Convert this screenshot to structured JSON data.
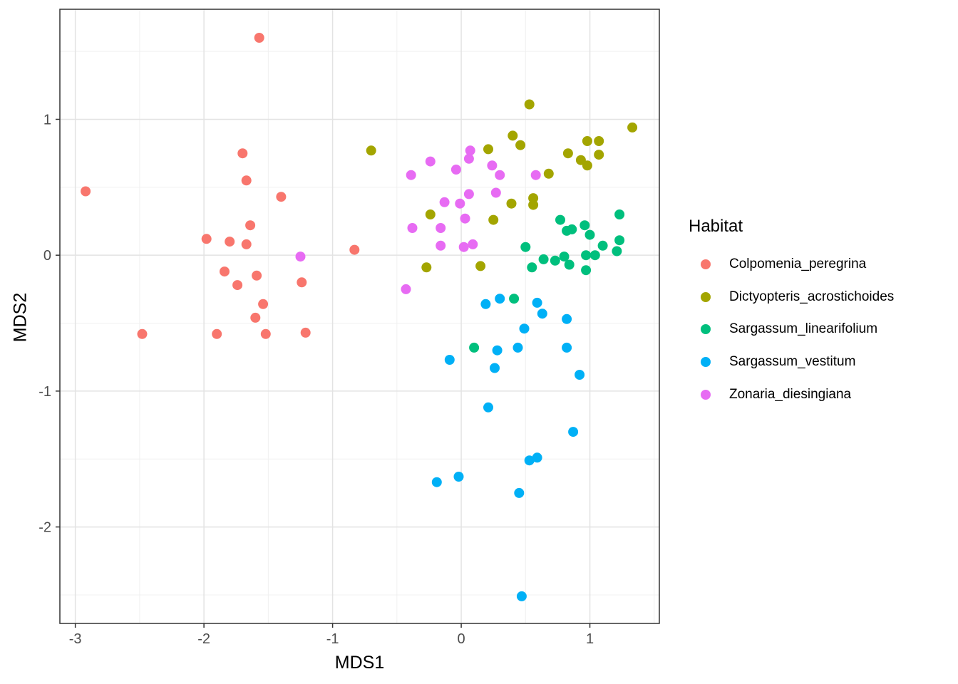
{
  "legend": {
    "title": "Habitat",
    "items": [
      {
        "label": "Colpomenia_peregrina",
        "color": "#F8766D"
      },
      {
        "label": "Dictyopteris_acrostichoides",
        "color": "#A3A500"
      },
      {
        "label": "Sargassum_linearifolium",
        "color": "#00BF7D"
      },
      {
        "label": "Sargassum_vestitum",
        "color": "#00B0F6"
      },
      {
        "label": "Zonaria_diesingiana",
        "color": "#E76BF3"
      }
    ]
  },
  "chart_data": {
    "type": "scatter",
    "title": "",
    "xlabel": "MDS1",
    "ylabel": "MDS2",
    "xlim": [
      -3.12,
      1.54
    ],
    "ylim": [
      -2.71,
      1.81
    ],
    "grid": true,
    "legend_position": "right",
    "legend_title": "Habitat",
    "x_ticks": {
      "values": [
        -3,
        -2,
        -1,
        0,
        1
      ],
      "labels": [
        "-3",
        "-2",
        "-1",
        "0",
        "1"
      ]
    },
    "y_ticks": {
      "values": [
        1,
        0,
        -1,
        -2
      ],
      "labels": [
        "1",
        "0",
        "-1",
        "-2"
      ]
    },
    "x_minor": [
      -2.5,
      -1.5,
      -0.5,
      0.5,
      1.5
    ],
    "y_minor": [
      1.5,
      0.5,
      -0.5,
      -1.5,
      -2.5
    ],
    "colors": {
      "major_grid": "#E3E3E3",
      "minor_grid": "#F0F0F0",
      "panel_border": "#333333",
      "tick_mark": "#333333",
      "tick_label": "#4D4D4D"
    },
    "point_radius": 7,
    "series": [
      {
        "name": "Colpomenia_peregrina",
        "color": "#F8766D",
        "points": [
          [
            -1.57,
            1.6
          ],
          [
            -1.7,
            0.75
          ],
          [
            -1.67,
            0.55
          ],
          [
            -2.92,
            0.47
          ],
          [
            -1.4,
            0.43
          ],
          [
            -1.64,
            0.22
          ],
          [
            -1.98,
            0.12
          ],
          [
            -1.8,
            0.1
          ],
          [
            -1.67,
            0.08
          ],
          [
            -0.83,
            0.04
          ],
          [
            -1.84,
            -0.12
          ],
          [
            -1.59,
            -0.15
          ],
          [
            -1.24,
            -0.2
          ],
          [
            -1.74,
            -0.22
          ],
          [
            -1.54,
            -0.36
          ],
          [
            -1.6,
            -0.46
          ],
          [
            -2.48,
            -0.58
          ],
          [
            -1.9,
            -0.58
          ],
          [
            -1.52,
            -0.58
          ],
          [
            -1.21,
            -0.57
          ]
        ]
      },
      {
        "name": "Dictyopteris_acrostichoides",
        "color": "#A3A500",
        "points": [
          [
            0.53,
            1.11
          ],
          [
            1.33,
            0.94
          ],
          [
            0.4,
            0.88
          ],
          [
            0.98,
            0.84
          ],
          [
            1.07,
            0.84
          ],
          [
            0.46,
            0.81
          ],
          [
            0.21,
            0.78
          ],
          [
            -0.7,
            0.77
          ],
          [
            0.83,
            0.75
          ],
          [
            1.07,
            0.74
          ],
          [
            0.93,
            0.7
          ],
          [
            0.98,
            0.66
          ],
          [
            0.68,
            0.6
          ],
          [
            0.56,
            0.42
          ],
          [
            0.39,
            0.38
          ],
          [
            0.56,
            0.37
          ],
          [
            -0.24,
            0.3
          ],
          [
            0.25,
            0.26
          ],
          [
            0.15,
            -0.08
          ],
          [
            -0.27,
            -0.09
          ]
        ]
      },
      {
        "name": "Sargassum_linearifolium",
        "color": "#00BF7D",
        "points": [
          [
            1.23,
            0.3
          ],
          [
            0.77,
            0.26
          ],
          [
            0.96,
            0.22
          ],
          [
            0.86,
            0.19
          ],
          [
            0.82,
            0.18
          ],
          [
            1.0,
            0.15
          ],
          [
            1.23,
            0.11
          ],
          [
            1.1,
            0.07
          ],
          [
            0.5,
            0.06
          ],
          [
            1.21,
            0.03
          ],
          [
            0.97,
            0.0
          ],
          [
            1.04,
            0.0
          ],
          [
            0.8,
            -0.01
          ],
          [
            0.64,
            -0.03
          ],
          [
            0.73,
            -0.04
          ],
          [
            0.84,
            -0.07
          ],
          [
            0.55,
            -0.09
          ],
          [
            0.97,
            -0.11
          ],
          [
            0.41,
            -0.32
          ],
          [
            0.1,
            -0.68
          ]
        ]
      },
      {
        "name": "Sargassum_vestitum",
        "color": "#00B0F6",
        "points": [
          [
            0.3,
            -0.32
          ],
          [
            0.59,
            -0.35
          ],
          [
            0.19,
            -0.36
          ],
          [
            0.63,
            -0.43
          ],
          [
            0.82,
            -0.47
          ],
          [
            0.49,
            -0.54
          ],
          [
            0.44,
            -0.68
          ],
          [
            0.82,
            -0.68
          ],
          [
            0.28,
            -0.7
          ],
          [
            -0.09,
            -0.77
          ],
          [
            0.26,
            -0.83
          ],
          [
            0.92,
            -0.88
          ],
          [
            0.21,
            -1.12
          ],
          [
            0.87,
            -1.3
          ],
          [
            0.59,
            -1.49
          ],
          [
            0.53,
            -1.51
          ],
          [
            -0.02,
            -1.63
          ],
          [
            -0.19,
            -1.67
          ],
          [
            0.45,
            -1.75
          ],
          [
            0.47,
            -2.51
          ]
        ]
      },
      {
        "name": "Zonaria_diesingiana",
        "color": "#E76BF3",
        "points": [
          [
            0.07,
            0.77
          ],
          [
            0.06,
            0.71
          ],
          [
            -0.24,
            0.69
          ],
          [
            0.24,
            0.66
          ],
          [
            -0.04,
            0.63
          ],
          [
            -0.39,
            0.59
          ],
          [
            0.3,
            0.59
          ],
          [
            0.58,
            0.59
          ],
          [
            0.27,
            0.46
          ],
          [
            0.06,
            0.45
          ],
          [
            -0.13,
            0.39
          ],
          [
            -0.01,
            0.38
          ],
          [
            0.03,
            0.27
          ],
          [
            -0.38,
            0.2
          ],
          [
            -0.16,
            0.2
          ],
          [
            0.09,
            0.08
          ],
          [
            -0.16,
            0.07
          ],
          [
            0.02,
            0.06
          ],
          [
            -1.25,
            -0.01
          ],
          [
            -0.43,
            -0.25
          ]
        ]
      }
    ]
  }
}
